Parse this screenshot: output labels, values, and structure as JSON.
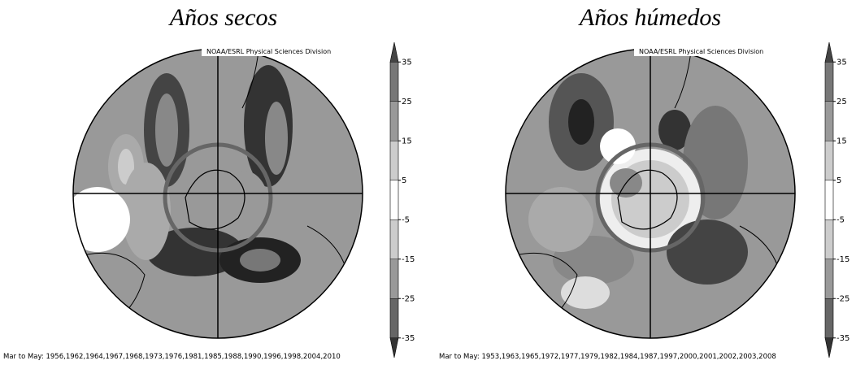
{
  "panels": [
    {
      "title": "Años secos",
      "credit": "NOAA/ESRL Physical Sciences Division",
      "caption": "Mar to May: 1956,1962,1964,1967,1968,1973,1976,1981,1985,1988,1990,1996,1998,2004,2010",
      "colorbar": {
        "lim": [
          -40,
          40
        ],
        "ticks": [
          35,
          25,
          15,
          5,
          -5,
          -15,
          -25,
          -35
        ],
        "colors": [
          "#444",
          "#777",
          "#999",
          "#ccc",
          "#fff",
          "#ccc",
          "#999",
          "#666",
          "#333"
        ]
      }
    },
    {
      "title": "Años húmedos",
      "credit": "NOAA/ESRL Physical Sciences Division",
      "caption": "Mar to May: 1953,1963,1965,1972,1977,1979,1982,1984,1987,1997,2000,2001,2002,2003,2008",
      "colorbar": {
        "lim": [
          -40,
          40
        ],
        "ticks": [
          35,
          25,
          15,
          5,
          -5,
          -15,
          -25,
          -35
        ],
        "colors": [
          "#444",
          "#777",
          "#999",
          "#ccc",
          "#fff",
          "#ccc",
          "#999",
          "#666",
          "#333"
        ]
      }
    }
  ]
}
